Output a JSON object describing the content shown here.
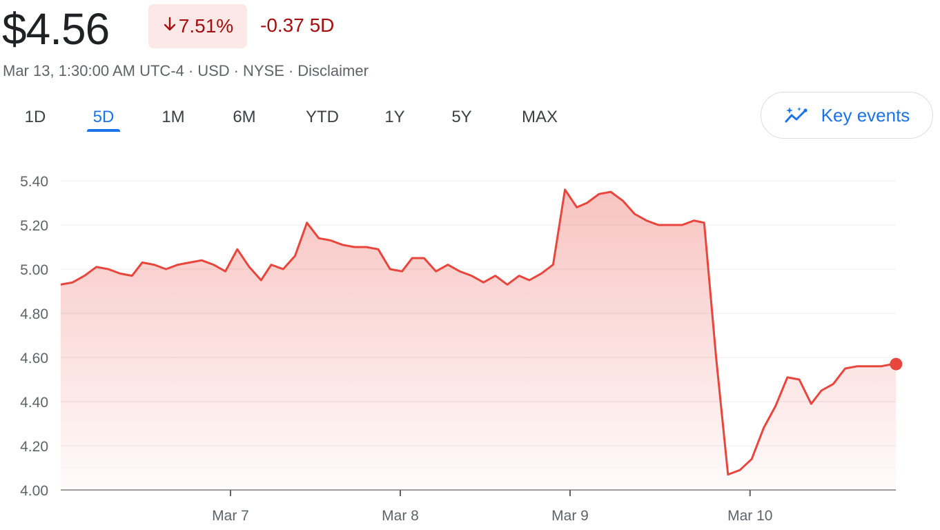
{
  "quote": {
    "price": "$4.56",
    "percent_change": "7.51%",
    "direction_icon": "arrow-down-icon",
    "absolute_change": "-0.37 5D",
    "timestamp": "Mar 13, 1:30:00 AM UTC-4",
    "currency": "USD",
    "exchange": "NYSE",
    "disclaimer": "Disclaimer",
    "separator": "·"
  },
  "tabs": [
    {
      "label": "1D",
      "active": false
    },
    {
      "label": "5D",
      "active": true
    },
    {
      "label": "1M",
      "active": false
    },
    {
      "label": "6M",
      "active": false
    },
    {
      "label": "YTD",
      "active": false
    },
    {
      "label": "1Y",
      "active": false
    },
    {
      "label": "5Y",
      "active": false
    },
    {
      "label": "MAX",
      "active": false
    }
  ],
  "key_events": {
    "label": "Key events",
    "icon": "sparkle-trend-icon"
  },
  "colors": {
    "line": "#e8453c",
    "negative_text": "#a50e0e",
    "badge_bg": "#fce8e6",
    "accent": "#1a73e8",
    "grid": "#ececec"
  },
  "chart_data": {
    "type": "area",
    "ylim": [
      4.0,
      5.4
    ],
    "y_ticks": [
      "4.00",
      "4.20",
      "4.40",
      "4.60",
      "4.80",
      "5.00",
      "5.20",
      "5.40"
    ],
    "x_tick_labels": [
      {
        "label": "Mar 7",
        "day_pos": 1.0
      },
      {
        "label": "Mar 8",
        "day_pos": 2.0
      },
      {
        "label": "Mar 9",
        "day_pos": 3.0
      },
      {
        "label": "Mar 10",
        "day_pos": 4.06
      }
    ],
    "grid": true,
    "series": [
      {
        "x": [
          0.0,
          0.07,
          0.14,
          0.21,
          0.28,
          0.35,
          0.42,
          0.48,
          0.55,
          0.62,
          0.69,
          0.76,
          0.83,
          0.9,
          0.97,
          1.04,
          1.11,
          1.18,
          1.24,
          1.31,
          1.38,
          1.45,
          1.52,
          1.59,
          1.66,
          1.73,
          1.8,
          1.87,
          1.94,
          2.01,
          2.07,
          2.14,
          2.21,
          2.28,
          2.35,
          2.42,
          2.49,
          2.56,
          2.63,
          2.7,
          2.76,
          2.83,
          2.9,
          2.97,
          3.04,
          3.1,
          3.17,
          3.24,
          3.31,
          3.38,
          3.45,
          3.52,
          3.59,
          3.66,
          3.73,
          3.79,
          3.86,
          3.93,
          4.0,
          4.07,
          4.14,
          4.21,
          4.28,
          4.35,
          4.42,
          4.48,
          4.55,
          4.62,
          4.69,
          4.76,
          4.83,
          4.9,
          4.92
        ],
        "y": [
          4.93,
          4.94,
          4.97,
          5.01,
          5.0,
          4.98,
          4.97,
          5.03,
          5.02,
          5.0,
          5.02,
          5.03,
          5.04,
          5.02,
          4.99,
          5.09,
          5.01,
          4.95,
          5.02,
          5.0,
          5.06,
          5.21,
          5.14,
          5.13,
          5.11,
          5.1,
          5.1,
          5.09,
          5.0,
          4.99,
          5.05,
          5.05,
          4.99,
          5.02,
          4.99,
          4.97,
          4.94,
          4.97,
          4.93,
          4.97,
          4.95,
          4.98,
          5.02,
          5.36,
          5.28,
          5.3,
          5.34,
          5.35,
          5.31,
          5.25,
          5.22,
          5.2,
          5.2,
          5.2,
          5.22,
          5.21,
          4.6,
          4.07,
          4.09,
          4.14,
          4.28,
          4.38,
          4.51,
          4.5,
          4.39,
          4.45,
          4.48,
          4.55,
          4.56,
          4.56,
          4.56,
          4.57,
          4.57
        ]
      }
    ]
  }
}
